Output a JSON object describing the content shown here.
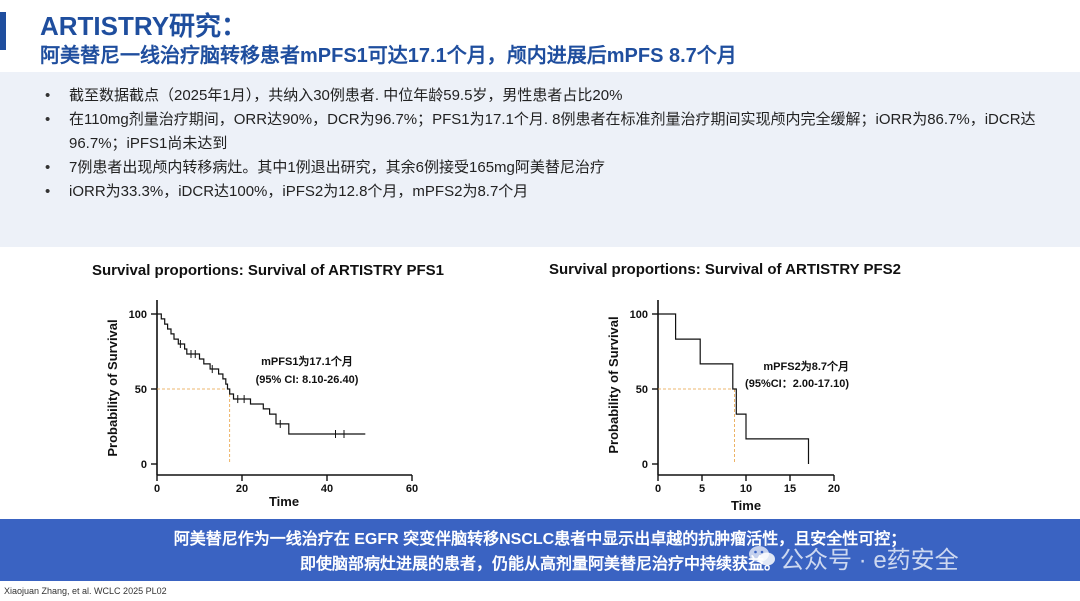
{
  "header": {
    "title": "ARTISTRY研究：",
    "subtitle": "阿美替尼一线治疗脑转移患者mPFS1可达17.1个月，颅内进展后mPFS 8.7个月"
  },
  "bullets": [
    "截至数据截点（2025年1月），共纳入30例患者. 中位年龄59.5岁，男性患者占比20%",
    "在110mg剂量治疗期间，ORR达90%，DCR为96.7%；PFS1为17.1个月. 8例患者在标准剂量治疗期间实现颅内完全缓解；iORR为86.7%，iDCR达96.7%；iPFS1尚未达到",
    "7例患者出现颅内转移病灶。其中1例退出研究，其余6例接受165mg阿美替尼治疗",
    "iORR为33.3%，iDCR达100%，iPFS2为12.8个月，mPFS2为8.7个月"
  ],
  "chart_data": [
    {
      "type": "line",
      "title": "Survival proportions: Survival of ARTISTRY PFS1",
      "xlabel": "Time",
      "ylabel": "Probability of Survival",
      "xlim": [
        0,
        60
      ],
      "ylim": [
        0,
        100
      ],
      "xticks": [
        "0",
        "20",
        "40",
        "60"
      ],
      "yticks": [
        "0",
        "50",
        "100"
      ],
      "median_x": 17.1,
      "annotation": [
        "mPFS1为17.1个月",
        "(95% CI: 8.10-26.40)"
      ],
      "color": "#111111",
      "median_line_color": "#e8a040",
      "step_x": [
        0,
        1,
        1.8,
        2.5,
        3.3,
        4,
        5,
        6.5,
        7,
        10,
        11,
        12.5,
        14.5,
        15.5,
        16.2,
        16.6,
        17.1,
        18,
        22,
        25,
        26.5,
        28,
        31,
        49
      ],
      "step_y": [
        100,
        96.7,
        93.3,
        90,
        86.7,
        83.3,
        80,
        76.7,
        73.3,
        70,
        66.7,
        63.3,
        60,
        56.7,
        53.3,
        50,
        46.7,
        43.3,
        40,
        36.7,
        33.3,
        26.7,
        20,
        20
      ],
      "censor_x": [
        5.5,
        8,
        9,
        13,
        19,
        20.5,
        29,
        42,
        44
      ],
      "censor_y": [
        80,
        73.3,
        73.3,
        63.3,
        43.3,
        43.3,
        26.7,
        20,
        20
      ]
    },
    {
      "type": "line",
      "title": "Survival proportions: Survival of ARTISTRY PFS2",
      "xlabel": "Time",
      "ylabel": "Probability of Survival",
      "xlim": [
        0,
        20
      ],
      "ylim": [
        0,
        100
      ],
      "xticks": [
        "0",
        "5",
        "10",
        "15",
        "20"
      ],
      "yticks": [
        "0",
        "50",
        "100"
      ],
      "median_x": 8.7,
      "annotation": [
        "mPFS2为8.7个月",
        "(95%CI：2.00-17.10)"
      ],
      "color": "#111111",
      "median_line_color": "#e8a040",
      "step_x": [
        0,
        2,
        4.8,
        8.5,
        8.9,
        10,
        17.1
      ],
      "step_y": [
        100,
        83.3,
        66.7,
        50,
        33.3,
        16.7,
        0
      ],
      "censor_x": [],
      "censor_y": []
    }
  ],
  "banner": {
    "line1": "阿美替尼作为一线治疗在 EGFR 突变伴脑转移NSCLC患者中显示出卓越的抗肿瘤活性，且安全性可控；",
    "line2": "即使脑部病灶进展的患者，仍能从高剂量阿美替尼治疗中持续获益。"
  },
  "watermark": "公众号 · e药安全",
  "watermark_icon": "wechat-icon",
  "footer": "Xiaojuan Zhang, et al. WCLC 2025 PL02",
  "colors": {
    "brand": "#1f4e9e",
    "banner": "#3a63c2",
    "band": "#edf1f8"
  }
}
